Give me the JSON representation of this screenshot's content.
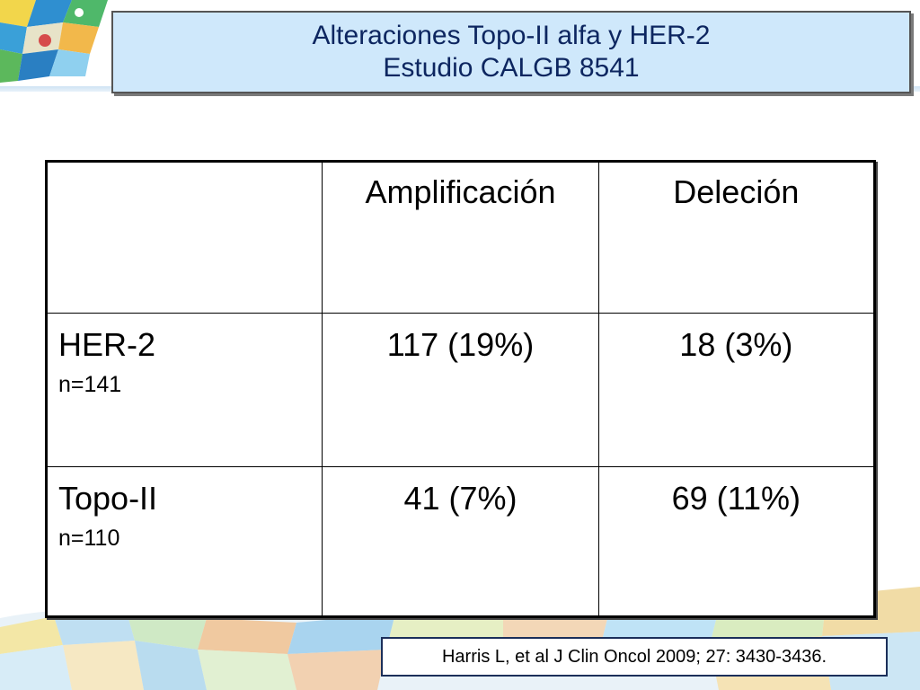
{
  "title": {
    "line1": "Alteraciones Topo-II alfa y HER-2",
    "line2": "Estudio CALGB 8541"
  },
  "table": {
    "headers": [
      "",
      "Amplificación",
      "Deleción"
    ],
    "rows": [
      {
        "name": "HER-2",
        "n": "n=141",
        "amplificacion": "117 (19%)",
        "delecion": "18 (3%)"
      },
      {
        "name": "Topo-II",
        "n": "n=110",
        "amplificacion": "41 (7%)",
        "delecion": "69 (11%)"
      }
    ]
  },
  "citation": "Harris L, et al J Clin Oncol 2009; 27: 3430-3436.",
  "colors": {
    "title_fill": "#cfe8fb",
    "title_text": "#0d2660",
    "citation_border": "#1b2f5a"
  }
}
